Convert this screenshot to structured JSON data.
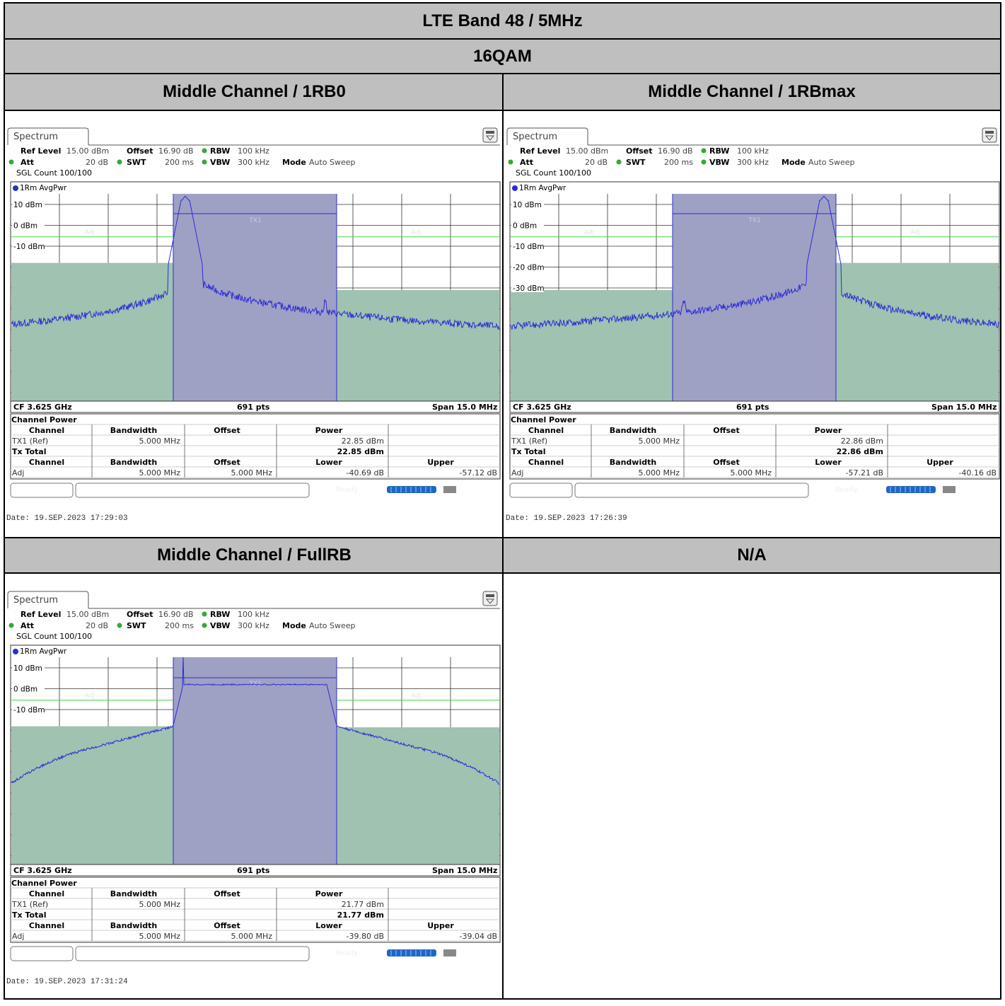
{
  "title": "LTE Band 48 / 5MHz",
  "modulation": "16QAM",
  "na_label": "N/A",
  "common": {
    "tab_label": "Spectrum",
    "ref_level_label": "Ref Level",
    "ref_level_value": "15.00 dBm",
    "offset_label": "Offset",
    "offset_value": "16.90 dB",
    "rbw_label": "RBW",
    "rbw_value": "100 kHz",
    "att_label": "Att",
    "att_value": "20 dB",
    "swt_label": "SWT",
    "swt_value": "200 ms",
    "vbw_label": "VBW",
    "vbw_value": "300 kHz",
    "mode_label": "Mode",
    "mode_value": "Auto Sweep",
    "sgl_count": "SGL Count 100/100",
    "trace_label": "1Rm AvgPwr",
    "adj_label": "Adj",
    "tx1_label": "TX1",
    "cf": "CF 3.625 GHz",
    "pts": "691 pts",
    "span": "Span 15.0 MHz",
    "table_title": "Channel Power",
    "col_channel": "Channel",
    "col_bandwidth": "Bandwidth",
    "col_offset": "Offset",
    "col_power": "Power",
    "col_lower": "Lower",
    "col_upper": "Upper",
    "row_tx1": "TX1 (Ref)",
    "row_txtotal": "Tx Total",
    "row_adj": "Adj",
    "bw_value": "5.000 MHz",
    "offset_value_adj": "5.000 MHz",
    "status_ready": "Ready",
    "colors": {
      "trace": "#2b2bd6",
      "channel_fill": "#9fa1c4",
      "adj_fill": "#a0c2b0",
      "limit_line": "#44d444"
    }
  },
  "panels": [
    {
      "heading": "Middle Channel / 1RB0",
      "mode": "rb0",
      "ref_levels": [
        "10 dBm",
        "0 dBm",
        "-10 dBm"
      ],
      "tx1_power": "22.85 dBm",
      "tx_total": "22.85 dBm",
      "lower": "-40.69 dB",
      "upper": "-57.12 dB",
      "date": "Date: 19.SEP.2023  17:29:03"
    },
    {
      "heading": "Middle Channel / 1RBmax",
      "mode": "rbmax",
      "ref_levels": [
        "10 dBm",
        "0 dBm",
        "-10 dBm",
        "-20 dBm",
        "-30 dBm"
      ],
      "tx1_power": "22.86 dBm",
      "tx_total": "22.86 dBm",
      "lower": "-57.21 dB",
      "upper": "-40.16 dB",
      "date": "Date: 19.SEP.2023  17:26:39"
    },
    {
      "heading": "Middle Channel / FullRB",
      "mode": "full",
      "ref_levels": [
        "10 dBm",
        "0 dBm",
        "-10 dBm"
      ],
      "tx1_power": "21.77 dBm",
      "tx_total": "21.77 dBm",
      "lower": "-39.80 dB",
      "upper": "-39.04 dB",
      "date": "Date: 19.SEP.2023  17:31:24"
    }
  ]
}
